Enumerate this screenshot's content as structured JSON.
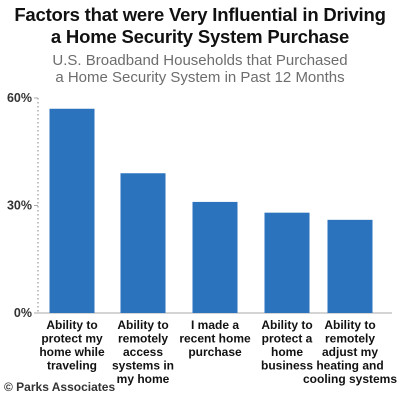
{
  "colors": {
    "bar": "#2b73bd",
    "axis": "#aaaaaa",
    "grid_dotted": "#999999"
  },
  "chart_data": {
    "type": "bar",
    "title": "Factors that were Very Influential in Driving a Home Security System Purchase",
    "title_lines": [
      "Factors that were Very Influential in Driving",
      "a Home Security System Purchase"
    ],
    "subtitle": "U.S. Broadband Households that Purchased a Home Security System in Past 12 Months",
    "subtitle_lines": [
      "U.S. Broadband Households that Purchased",
      "a Home Security System in Past 12 Months"
    ],
    "categories": [
      "Ability to protect my home while traveling",
      "Ability to remotely access systems in my home",
      "I made a recent home purchase",
      "Ability to protect a home business",
      "Ability to remotely adjust my heating and cooling systems"
    ],
    "category_lines": [
      [
        "Ability to",
        "protect my",
        "home while",
        "traveling"
      ],
      [
        "Ability to",
        "remotely",
        "access",
        "systems in",
        "my home"
      ],
      [
        "I made a",
        "recent home",
        "purchase"
      ],
      [
        "Ability to",
        "protect a",
        "home",
        "business"
      ],
      [
        "Ability to",
        "remotely",
        "adjust my",
        "heating and",
        "cooling systems"
      ]
    ],
    "values": [
      57,
      39,
      31,
      28,
      26
    ],
    "ylim": [
      0,
      60
    ],
    "yticks": [
      0,
      30,
      60
    ],
    "ytick_labels": [
      "0%",
      "30%",
      "60%"
    ],
    "xlabel": "",
    "ylabel": "",
    "grid": false
  },
  "footer": {
    "copyright": "© Parks Associates"
  }
}
